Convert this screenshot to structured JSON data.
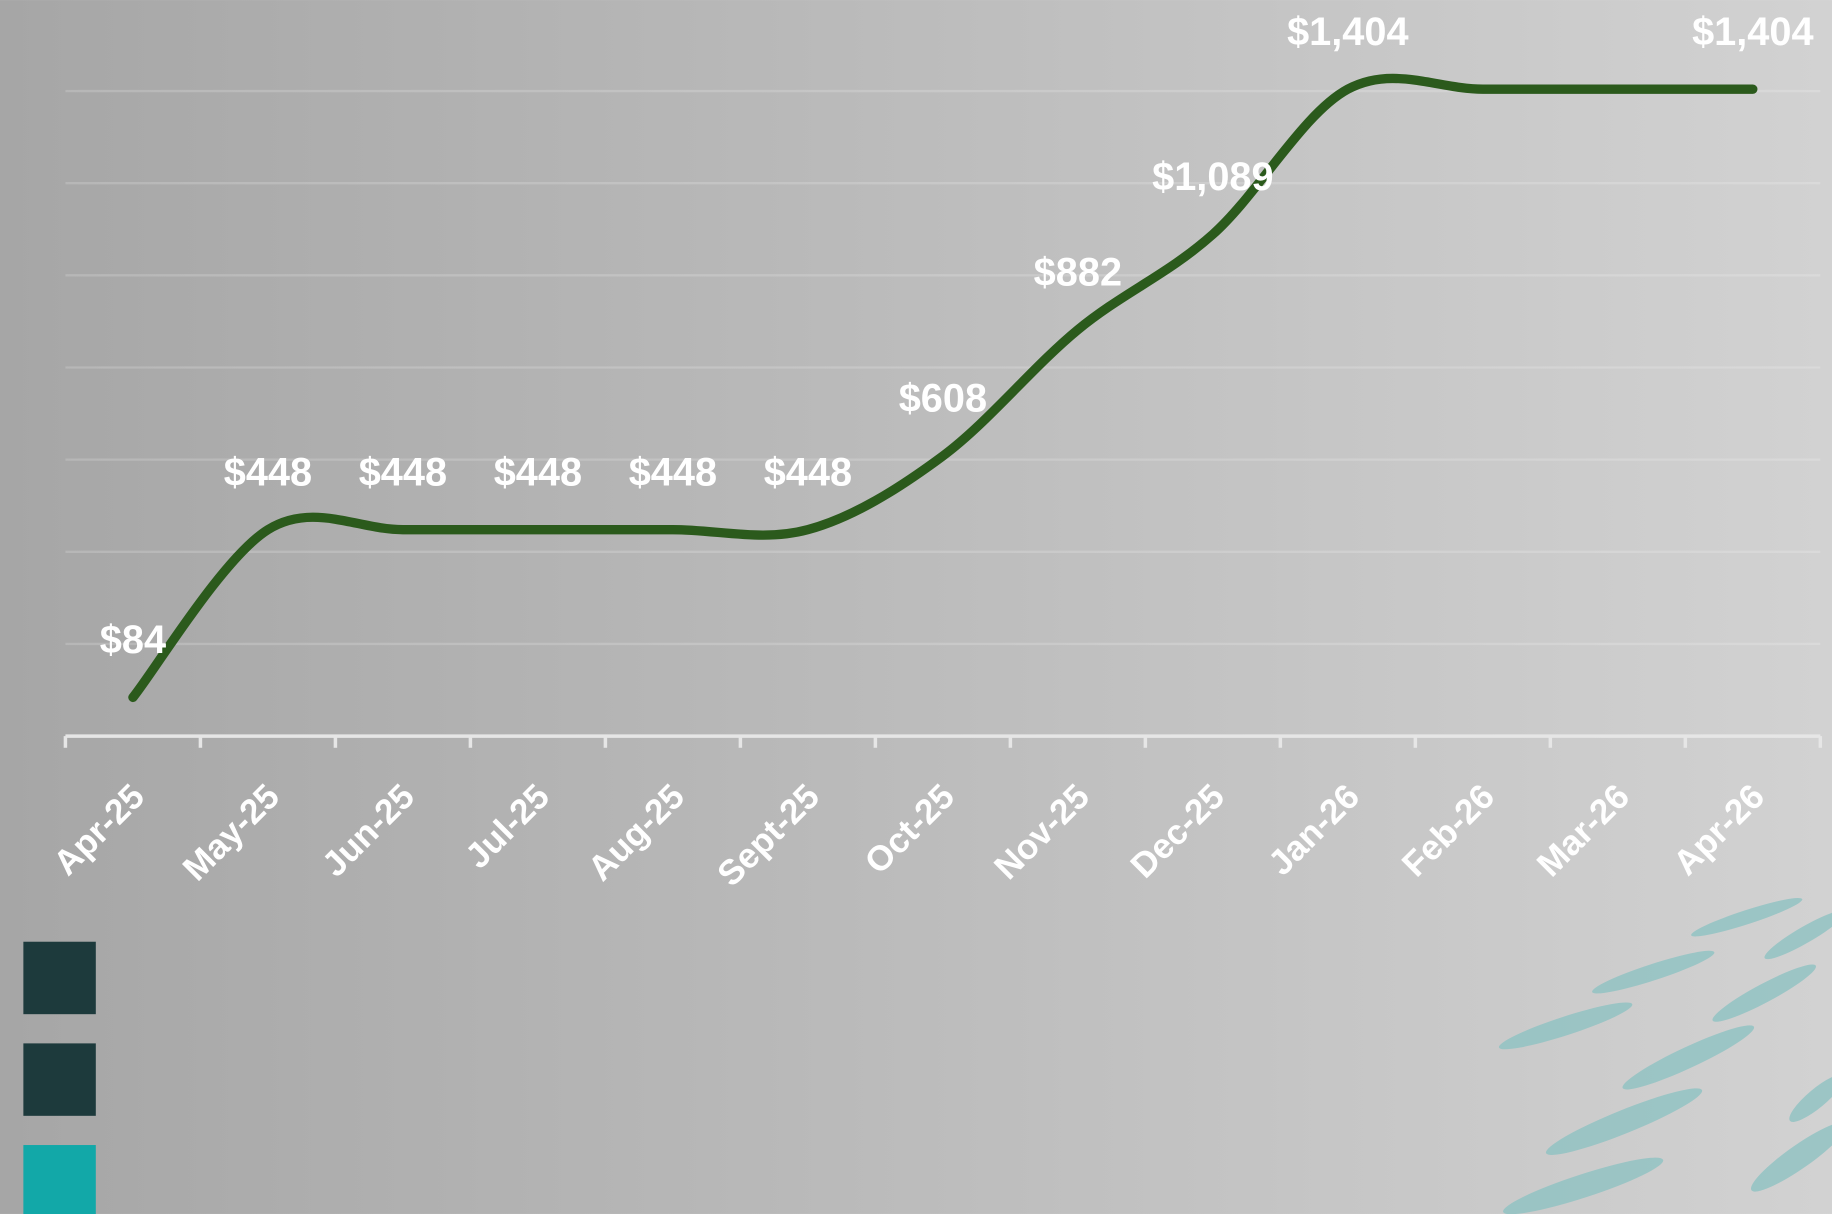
{
  "chart_data": {
    "type": "line",
    "categories": [
      "Apr-25",
      "May-25",
      "Jun-25",
      "Jul-25",
      "Aug-25",
      "Sept-25",
      "Oct-25",
      "Nov-25",
      "Dec-25",
      "Jan-26",
      "Feb-26",
      "Mar-26",
      "Apr-26"
    ],
    "values": [
      84,
      448,
      448,
      448,
      448,
      448,
      608,
      882,
      1089,
      1404,
      1404,
      1404,
      1404
    ],
    "value_labels": [
      "$84",
      "$448",
      "$448",
      "$448",
      "$448",
      "$448",
      "$608",
      "$882",
      "$1,089",
      "$1,404",
      null,
      null,
      "$1,404"
    ],
    "color": "#2b5a1c",
    "ylim": [
      0,
      1600
    ],
    "yticks": [
      0,
      200,
      400,
      600,
      800,
      1000,
      1200,
      1400,
      1600
    ],
    "grid": true
  }
}
